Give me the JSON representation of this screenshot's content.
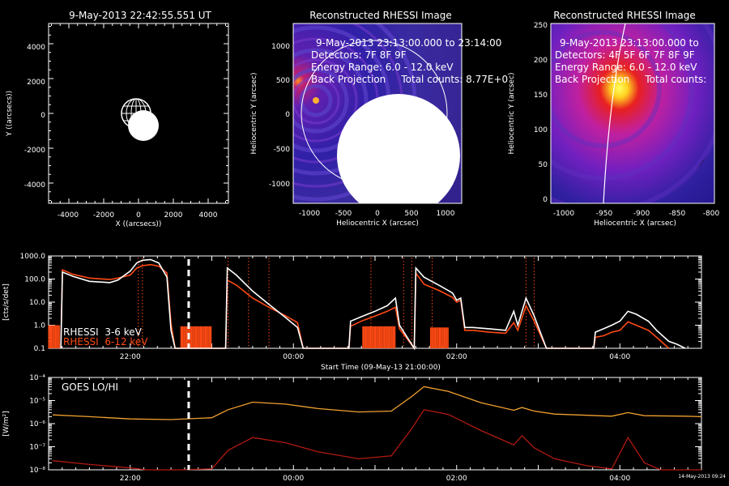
{
  "colors": {
    "background": "#000000",
    "foreground": "#ffffff",
    "rhessi_low": "#ffffff",
    "rhessi_high": "#ff4a14",
    "goes_lo": "#f0a030",
    "goes_hi": "#b01a10",
    "flare_marker": "#ff4a14"
  },
  "panels": {
    "locator": {
      "title": "9-May-2013 22:42:55.551 UT",
      "xlabel": "X ((arcsecs))",
      "ylabel": "Y ((arcsecs))",
      "ticks": [
        "-4000",
        "-2000",
        "0",
        "2000",
        "4000"
      ]
    },
    "image1": {
      "title": "Reconstructed RHESSI Image",
      "lines": [
        "9-May-2013 23:13:00.000 to 23:14:00",
        "Detectors: 7F 8F 9F",
        "Energy Range: 6.0 - 12.0 keV",
        "Back Projection     Total counts: 8.77E+0"
      ],
      "xlabel": "Heliocentric X (arcsec)",
      "ylabel": "Heliocentric Y (arcsec)",
      "xticks": [
        "-1000",
        "-500",
        "0",
        "500",
        "1000"
      ],
      "yticks": [
        "1000",
        "500",
        "0",
        "-500",
        "-1000"
      ]
    },
    "image2": {
      "title": "Reconstructed RHESSI Image",
      "lines": [
        "9-May-2013 23:13:00.000 to",
        "Detectors: 4F 5F 6F 7F 8F 9F",
        "Energy Range: 6.0 - 12.0 keV",
        "Back Projection     Total counts:"
      ],
      "xlabel": "Heliocentric X (arcsec)",
      "ylabel": "Heliocentric Y (arcsec)",
      "xticks": [
        "-1000",
        "-950",
        "-900",
        "-850",
        "-800"
      ],
      "yticks": [
        "250",
        "200",
        "150",
        "100",
        "50",
        "0"
      ]
    }
  },
  "chart_data": [
    {
      "type": "line",
      "panel": "rhessi-lightcurve",
      "ylabel": "[cts/s/det]",
      "xlabel": "Start Time (09-May-13 21:00:00)",
      "yscale": "log",
      "ylim": [
        0.1,
        1000
      ],
      "yticks": [
        "1000.0",
        "100.0",
        "10.0",
        "1.0",
        "0.1"
      ],
      "xlim_hours": [
        21.0,
        29.0
      ],
      "xticks": [
        "22:00",
        "00:00",
        "02:00",
        "04:00"
      ],
      "current_time_marker": "22:43",
      "legend": [
        "RHESSI  3-6 keV",
        "RHESSI  6-12 keV"
      ],
      "series": [
        {
          "name": "RHESSI  3-6 keV",
          "points": [
            [
              21.15,
              0.1
            ],
            [
              21.17,
              250
            ],
            [
              21.3,
              160
            ],
            [
              21.5,
              110
            ],
            [
              21.75,
              95
            ],
            [
              21.85,
              110
            ],
            [
              22.0,
              150
            ],
            [
              22.08,
              300
            ],
            [
              22.15,
              380
            ],
            [
              22.25,
              420
            ],
            [
              22.35,
              360
            ],
            [
              22.45,
              180
            ],
            [
              22.5,
              1.2
            ],
            [
              22.55,
              0.1
            ],
            [
              23.17,
              0.1
            ],
            [
              23.19,
              90
            ],
            [
              23.3,
              55
            ],
            [
              23.5,
              15
            ],
            [
              23.7,
              6
            ],
            [
              23.9,
              2.6
            ],
            [
              24.05,
              1.3
            ],
            [
              24.12,
              0.1
            ],
            [
              24.68,
              0.1
            ],
            [
              24.7,
              0.9
            ],
            [
              24.85,
              1.6
            ],
            [
              25.0,
              2.5
            ],
            [
              25.15,
              4
            ],
            [
              25.25,
              6
            ],
            [
              25.3,
              0.7
            ],
            [
              25.48,
              0.1
            ],
            [
              25.5,
              180
            ],
            [
              25.6,
              60
            ],
            [
              25.8,
              30
            ],
            [
              25.95,
              16
            ],
            [
              26.0,
              10
            ],
            [
              26.05,
              12
            ],
            [
              26.1,
              0.6
            ],
            [
              26.2,
              0.6
            ],
            [
              26.4,
              0.5
            ],
            [
              26.6,
              0.45
            ],
            [
              26.7,
              1.3
            ],
            [
              26.75,
              0.6
            ],
            [
              26.85,
              7
            ],
            [
              26.95,
              1.5
            ],
            [
              27.1,
              0.1
            ],
            [
              27.68,
              0.1
            ],
            [
              27.7,
              0.3
            ],
            [
              27.8,
              0.35
            ],
            [
              27.9,
              0.5
            ],
            [
              28.0,
              0.6
            ],
            [
              28.1,
              1.4
            ],
            [
              28.2,
              1.0
            ],
            [
              28.35,
              0.6
            ],
            [
              28.45,
              0.3
            ],
            [
              28.6,
              0.1
            ]
          ]
        },
        {
          "name": "RHESSI  6-12 keV",
          "points": [
            [
              21.15,
              0.1
            ],
            [
              21.17,
              200
            ],
            [
              21.3,
              130
            ],
            [
              21.5,
              80
            ],
            [
              21.75,
              70
            ],
            [
              21.85,
              90
            ],
            [
              22.0,
              220
            ],
            [
              22.08,
              500
            ],
            [
              22.15,
              650
            ],
            [
              22.25,
              700
            ],
            [
              22.35,
              500
            ],
            [
              22.45,
              120
            ],
            [
              22.5,
              0.6
            ],
            [
              22.55,
              0.1
            ],
            [
              23.17,
              0.1
            ],
            [
              23.19,
              300
            ],
            [
              23.3,
              150
            ],
            [
              23.5,
              30
            ],
            [
              23.7,
              8
            ],
            [
              23.9,
              2.2
            ],
            [
              24.05,
              0.8
            ],
            [
              24.12,
              0.1
            ],
            [
              24.68,
              0.1
            ],
            [
              24.7,
              1.5
            ],
            [
              24.85,
              2.5
            ],
            [
              25.0,
              4
            ],
            [
              25.15,
              7
            ],
            [
              25.25,
              15
            ],
            [
              25.3,
              1.0
            ],
            [
              25.48,
              0.1
            ],
            [
              25.5,
              300
            ],
            [
              25.6,
              120
            ],
            [
              25.8,
              50
            ],
            [
              25.95,
              25
            ],
            [
              26.0,
              12
            ],
            [
              26.05,
              15
            ],
            [
              26.1,
              0.8
            ],
            [
              26.2,
              0.8
            ],
            [
              26.4,
              0.7
            ],
            [
              26.6,
              0.6
            ],
            [
              26.7,
              4
            ],
            [
              26.75,
              1.0
            ],
            [
              26.85,
              15
            ],
            [
              26.95,
              2.5
            ],
            [
              27.1,
              0.1
            ],
            [
              27.68,
              0.1
            ],
            [
              27.7,
              0.5
            ],
            [
              27.8,
              0.7
            ],
            [
              27.9,
              1.0
            ],
            [
              28.0,
              1.5
            ],
            [
              28.1,
              4
            ],
            [
              28.2,
              3
            ],
            [
              28.35,
              1.5
            ],
            [
              28.45,
              0.6
            ],
            [
              28.6,
              0.2
            ],
            [
              28.7,
              0.15
            ],
            [
              28.8,
              0.1
            ]
          ]
        }
      ],
      "flare_times_hours": [
        22.1,
        22.15,
        23.2,
        23.45,
        23.7,
        24.95,
        25.35,
        25.45,
        25.7,
        26.85,
        26.95
      ]
    },
    {
      "type": "line",
      "panel": "goes-lightcurve",
      "ylabel": "[W/m²]",
      "yscale": "log",
      "ylim": [
        1e-08,
        0.0001
      ],
      "yticks": [
        "10⁻⁴",
        "10⁻⁵",
        "10⁻⁶",
        "10⁻⁷",
        "10⁻⁸"
      ],
      "xlim_hours": [
        21.0,
        29.0
      ],
      "xticks": [
        "22:00",
        "00:00",
        "02:00",
        "04:00"
      ],
      "current_time_marker": "22:43",
      "legend": [
        "GOES LO/HI"
      ],
      "stamp": "14-May-2013 09:24",
      "series": [
        {
          "name": "GOES LO",
          "points": [
            [
              21.05,
              2.4e-06
            ],
            [
              21.5,
              2e-06
            ],
            [
              22.0,
              1.6e-06
            ],
            [
              22.5,
              1.5e-06
            ],
            [
              23.0,
              1.8e-06
            ],
            [
              23.2,
              4e-06
            ],
            [
              23.5,
              8.5e-06
            ],
            [
              23.9,
              7e-06
            ],
            [
              24.3,
              4.5e-06
            ],
            [
              24.8,
              3.2e-06
            ],
            [
              25.2,
              3.5e-06
            ],
            [
              25.45,
              1.5e-05
            ],
            [
              25.6,
              4e-05
            ],
            [
              25.9,
              2.5e-05
            ],
            [
              26.3,
              8e-06
            ],
            [
              26.7,
              3.8e-06
            ],
            [
              26.8,
              5e-06
            ],
            [
              26.95,
              3.5e-06
            ],
            [
              27.2,
              2.6e-06
            ],
            [
              27.6,
              2.3e-06
            ],
            [
              27.9,
              2.1e-06
            ],
            [
              28.1,
              3e-06
            ],
            [
              28.3,
              2.2e-06
            ],
            [
              28.8,
              2.1e-06
            ],
            [
              29.0,
              2e-06
            ]
          ]
        },
        {
          "name": "GOES HI",
          "points": [
            [
              21.05,
              2.5e-08
            ],
            [
              21.5,
              1.7e-08
            ],
            [
              22.0,
              1.2e-08
            ],
            [
              22.2,
              1e-08
            ],
            [
              22.6,
              1e-08
            ],
            [
              23.0,
              1.1e-08
            ],
            [
              23.2,
              7e-08
            ],
            [
              23.5,
              2.5e-07
            ],
            [
              23.9,
              1.5e-07
            ],
            [
              24.3,
              6e-08
            ],
            [
              24.8,
              3e-08
            ],
            [
              25.2,
              4e-08
            ],
            [
              25.45,
              6e-07
            ],
            [
              25.6,
              4e-06
            ],
            [
              25.9,
              2.5e-06
            ],
            [
              26.3,
              5e-07
            ],
            [
              26.7,
              1.2e-07
            ],
            [
              26.8,
              3e-07
            ],
            [
              26.95,
              9e-08
            ],
            [
              27.2,
              3e-08
            ],
            [
              27.6,
              1.5e-08
            ],
            [
              27.9,
              1.1e-08
            ],
            [
              28.1,
              2.5e-07
            ],
            [
              28.3,
              2e-08
            ],
            [
              28.5,
              1e-08
            ],
            [
              29.0,
              1e-08
            ]
          ]
        }
      ]
    }
  ]
}
